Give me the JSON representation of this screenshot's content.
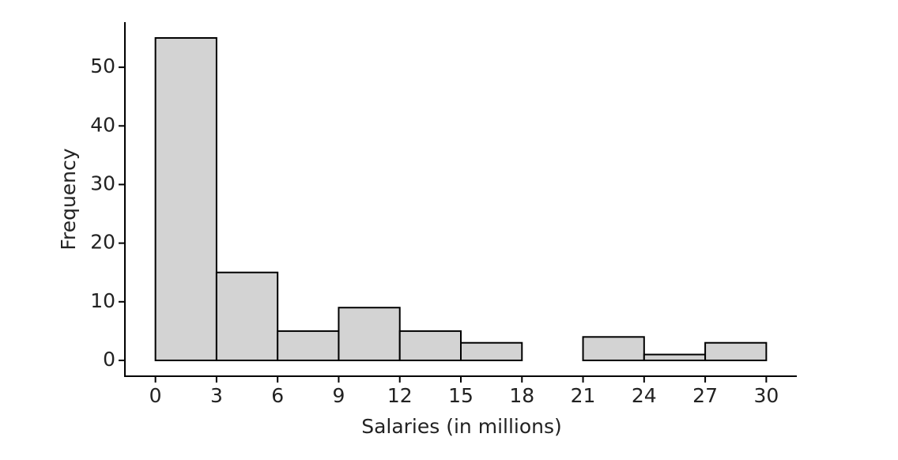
{
  "chart_data": {
    "type": "histogram",
    "x_label": "Salaries (in millions)",
    "y_label": "Frequency",
    "bins": [
      0,
      3,
      6,
      9,
      12,
      15,
      18,
      21,
      24,
      27,
      30
    ],
    "values": [
      55,
      15,
      5,
      9,
      5,
      3,
      0,
      4,
      1,
      3
    ],
    "color": "#d3d3d3",
    "xlim": [
      -1.5,
      31.5
    ],
    "ylim": [
      -2.7,
      57.7
    ],
    "xticks": [
      0,
      3,
      6,
      9,
      12,
      15,
      18,
      21,
      24,
      27,
      30
    ],
    "yticks": [
      0,
      10,
      20,
      30,
      40,
      50
    ],
    "grid": false
  }
}
